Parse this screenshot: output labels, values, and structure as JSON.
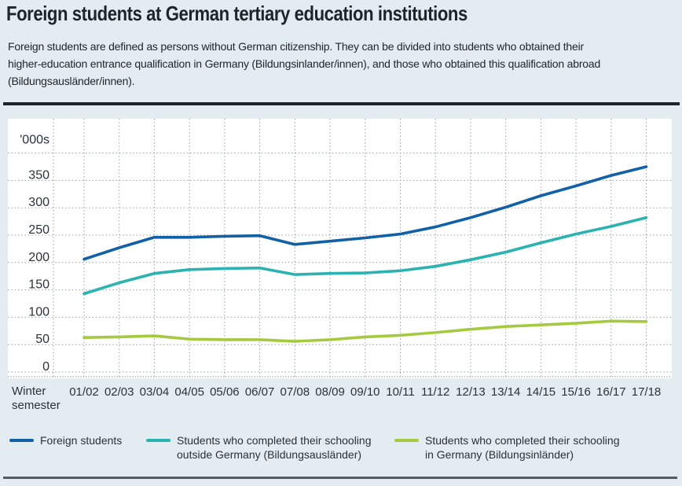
{
  "header": {
    "title": "Foreign students at German tertiary education institutions"
  },
  "intro": {
    "lines": [
      "Foreign students are defined as persons without German citizenship. They can be divided into students who obtained their",
      "higher-education entrance qualification in Germany (Bildungsinlander/innen), and those who obtained this qualification abroad",
      "(Bildungsausländer/innen)."
    ]
  },
  "chart_data": {
    "type": "line",
    "unit_label": "'000s",
    "x_axis_title": "Winter\nsemester",
    "categories": [
      "01/02",
      "02/03",
      "03/04",
      "04/05",
      "05/06",
      "06/07",
      "07/08",
      "08/09",
      "09/10",
      "10/11",
      "11/12",
      "12/13",
      "13/14",
      "14/15",
      "15/16",
      "16/17",
      "17/18"
    ],
    "y_ticks": [
      0,
      50,
      100,
      150,
      200,
      250,
      300,
      350
    ],
    "ylim": [
      0,
      400
    ],
    "grid": "dotted",
    "legend_position": "bottom",
    "series": [
      {
        "name": "Foreign students",
        "color": "#1261a7",
        "values": [
          206,
          227,
          246,
          246,
          248,
          249,
          233,
          239,
          245,
          252,
          265,
          282,
          301,
          322,
          340,
          359,
          375
        ]
      },
      {
        "name": "Students who completed their schooling outside Germany (Bildungsausländer)",
        "color": "#2bb3b1",
        "values": [
          143,
          163,
          180,
          187,
          189,
          190,
          178,
          180,
          181,
          185,
          193,
          205,
          219,
          236,
          252,
          266,
          282
        ]
      },
      {
        "name": "Students who completed their schooling in Germany (Bildungsinländer)",
        "color": "#a5c93f",
        "values": [
          63,
          64,
          66,
          60,
          59,
          59,
          56,
          59,
          64,
          67,
          72,
          78,
          83,
          86,
          89,
          93,
          92
        ]
      }
    ]
  },
  "legend": {
    "items": [
      {
        "label": "Foreign students"
      },
      {
        "label": "Students who completed their schooling\noutside Germany (Bildungsausländer)"
      },
      {
        "label": "Students who completed their schooling\nin Germany (Bildungsinländer)"
      }
    ]
  },
  "colors": {
    "background": "#e3ecf1",
    "panel": "#ffffff",
    "grid": "#979ea4",
    "text": "#2b323a",
    "top_rule": "#1d242c",
    "bottom_rule": "#545c63"
  }
}
